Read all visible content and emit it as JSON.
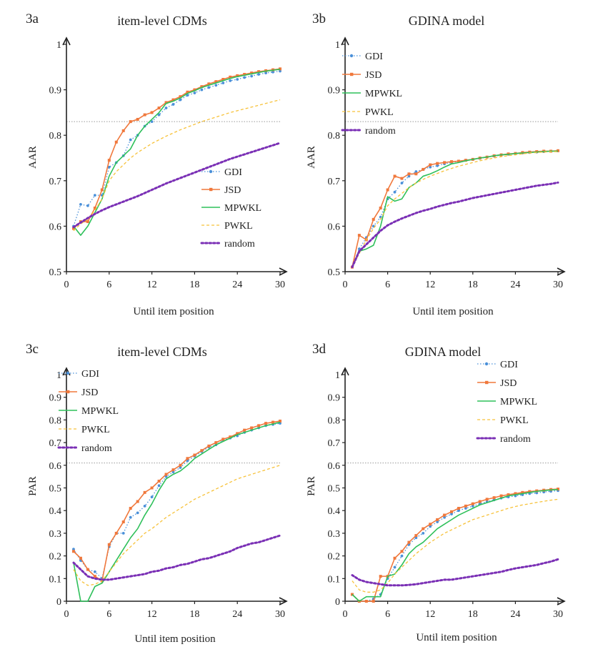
{
  "figure": {
    "series_colors": {
      "GDI": "#4a90d9",
      "JSD": "#f0783c",
      "MPWKL": "#2ec05a",
      "PWKL": "#f7c23a",
      "random": "#7a2fb5"
    },
    "reference_line_color": "#999999"
  },
  "panels": [
    {
      "label": "3a",
      "title": "item-level CDMs"
    },
    {
      "label": "3b",
      "title": "GDINA model"
    },
    {
      "label": "3c",
      "title": "item-level CDMs"
    },
    {
      "label": "3d",
      "title": "GDINA model"
    }
  ],
  "chart_data": [
    {
      "type": "line",
      "id": "3a",
      "title": "item-level CDMs",
      "xlabel": "Until item position",
      "ylabel": "AAR",
      "xlim": [
        0,
        30
      ],
      "ylim": [
        0.5,
        1
      ],
      "xticks": [
        0,
        6,
        12,
        18,
        24,
        30
      ],
      "xtick_labels": [
        "0",
        "6",
        "12",
        "18",
        "24",
        "30"
      ],
      "yticks": [
        0.5,
        0.6,
        0.7,
        0.8,
        0.9,
        1
      ],
      "ytick_labels": [
        "0.5",
        "0.6",
        "0.7",
        "0.8",
        "0.9",
        "1"
      ],
      "reference_line": 0.83,
      "legend": "right-middle",
      "x": [
        1,
        2,
        3,
        4,
        5,
        6,
        7,
        8,
        9,
        10,
        11,
        12,
        13,
        14,
        15,
        16,
        17,
        18,
        19,
        20,
        21,
        22,
        23,
        24,
        25,
        26,
        27,
        28,
        29,
        30
      ],
      "series": [
        {
          "name": "GDI",
          "values": [
            0.6,
            0.648,
            0.645,
            0.668,
            0.668,
            0.73,
            0.74,
            0.755,
            0.79,
            0.8,
            0.82,
            0.83,
            0.845,
            0.86,
            0.868,
            0.878,
            0.888,
            0.893,
            0.9,
            0.905,
            0.91,
            0.915,
            0.92,
            0.923,
            0.927,
            0.93,
            0.934,
            0.937,
            0.939,
            0.941
          ]
        },
        {
          "name": "JSD",
          "values": [
            0.595,
            0.61,
            0.61,
            0.64,
            0.68,
            0.745,
            0.785,
            0.81,
            0.83,
            0.835,
            0.845,
            0.85,
            0.86,
            0.872,
            0.878,
            0.885,
            0.895,
            0.9,
            0.907,
            0.913,
            0.918,
            0.923,
            0.928,
            0.931,
            0.934,
            0.937,
            0.94,
            0.942,
            0.944,
            0.946
          ]
        },
        {
          "name": "MPWKL",
          "values": [
            0.6,
            0.58,
            0.6,
            0.63,
            0.66,
            0.71,
            0.74,
            0.755,
            0.77,
            0.8,
            0.82,
            0.835,
            0.85,
            0.87,
            0.875,
            0.882,
            0.892,
            0.898,
            0.905,
            0.91,
            0.915,
            0.92,
            0.925,
            0.929,
            0.932,
            0.935,
            0.938,
            0.941,
            0.943,
            0.945
          ]
        },
        {
          "name": "PWKL",
          "values": [
            0.59,
            0.605,
            0.615,
            0.635,
            0.66,
            0.7,
            0.72,
            0.735,
            0.75,
            0.762,
            0.772,
            0.782,
            0.79,
            0.798,
            0.805,
            0.812,
            0.818,
            0.824,
            0.83,
            0.835,
            0.84,
            0.845,
            0.85,
            0.854,
            0.858,
            0.862,
            0.866,
            0.87,
            0.874,
            0.878
          ]
        },
        {
          "name": "random",
          "values": [
            0.598,
            0.608,
            0.618,
            0.627,
            0.635,
            0.642,
            0.648,
            0.654,
            0.66,
            0.666,
            0.673,
            0.68,
            0.687,
            0.694,
            0.7,
            0.706,
            0.712,
            0.718,
            0.724,
            0.73,
            0.736,
            0.742,
            0.748,
            0.753,
            0.758,
            0.763,
            0.768,
            0.773,
            0.778,
            0.783
          ]
        }
      ]
    },
    {
      "type": "line",
      "id": "3b",
      "title": "GDINA model",
      "xlabel": "Until item position",
      "ylabel": "AAR",
      "xlim": [
        0,
        30
      ],
      "ylim": [
        0.5,
        1
      ],
      "xticks": [
        0,
        6,
        12,
        18,
        24,
        30
      ],
      "xtick_labels": [
        "0",
        "6",
        "12",
        "18",
        "24",
        "30"
      ],
      "yticks": [
        0.5,
        0.6,
        0.7,
        0.8,
        0.9,
        1
      ],
      "ytick_labels": [
        "0.5",
        "0.6",
        "0.7",
        "0.8",
        "0.9",
        "1"
      ],
      "reference_line": 0.83,
      "legend": "top-left",
      "x": [
        1,
        2,
        3,
        4,
        5,
        6,
        7,
        8,
        9,
        10,
        11,
        12,
        13,
        14,
        15,
        16,
        17,
        18,
        19,
        20,
        21,
        22,
        23,
        24,
        25,
        26,
        27,
        28,
        29,
        30
      ],
      "series": [
        {
          "name": "GDI",
          "values": [
            0.51,
            0.55,
            0.575,
            0.6,
            0.62,
            0.66,
            0.675,
            0.695,
            0.71,
            0.72,
            0.725,
            0.73,
            0.733,
            0.737,
            0.74,
            0.743,
            0.745,
            0.747,
            0.749,
            0.752,
            0.754,
            0.756,
            0.758,
            0.759,
            0.761,
            0.762,
            0.763,
            0.764,
            0.765,
            0.766
          ]
        },
        {
          "name": "JSD",
          "values": [
            0.51,
            0.58,
            0.57,
            0.615,
            0.64,
            0.68,
            0.71,
            0.705,
            0.715,
            0.715,
            0.725,
            0.735,
            0.738,
            0.74,
            0.742,
            0.743,
            0.745,
            0.747,
            0.75,
            0.752,
            0.755,
            0.757,
            0.759,
            0.76,
            0.762,
            0.763,
            0.764,
            0.765,
            0.765,
            0.766
          ]
        },
        {
          "name": "MPWKL",
          "values": [
            0.51,
            0.545,
            0.55,
            0.558,
            0.6,
            0.665,
            0.655,
            0.66,
            0.685,
            0.695,
            0.71,
            0.715,
            0.722,
            0.73,
            0.737,
            0.74,
            0.744,
            0.747,
            0.75,
            0.752,
            0.755,
            0.757,
            0.758,
            0.76,
            0.761,
            0.762,
            0.763,
            0.764,
            0.765,
            0.765
          ]
        },
        {
          "name": "PWKL",
          "values": [
            0.51,
            0.54,
            0.57,
            0.595,
            0.615,
            0.645,
            0.66,
            0.672,
            0.685,
            0.695,
            0.703,
            0.71,
            0.716,
            0.722,
            0.727,
            0.732,
            0.736,
            0.74,
            0.744,
            0.747,
            0.75,
            0.753,
            0.755,
            0.757,
            0.759,
            0.761,
            0.762,
            0.763,
            0.764,
            0.764
          ]
        },
        {
          "name": "random",
          "values": [
            0.51,
            0.545,
            0.56,
            0.575,
            0.59,
            0.602,
            0.61,
            0.617,
            0.623,
            0.629,
            0.634,
            0.638,
            0.643,
            0.647,
            0.651,
            0.654,
            0.658,
            0.662,
            0.665,
            0.668,
            0.671,
            0.674,
            0.677,
            0.68,
            0.683,
            0.686,
            0.689,
            0.691,
            0.693,
            0.696
          ]
        }
      ]
    },
    {
      "type": "line",
      "id": "3c",
      "title": "item-level CDMs",
      "xlabel": "Until item position",
      "ylabel": "PAR",
      "xlim": [
        0,
        30
      ],
      "ylim": [
        0,
        1
      ],
      "xticks": [
        0,
        6,
        12,
        18,
        24,
        30
      ],
      "xtick_labels": [
        "0",
        "6",
        "12",
        "18",
        "24",
        "30"
      ],
      "yticks": [
        0,
        0.1,
        0.2,
        0.3,
        0.4,
        0.5,
        0.6,
        0.7,
        0.8,
        0.9,
        1
      ],
      "ytick_labels": [
        "0",
        "0.1",
        "0.2",
        "0.3",
        "0.4",
        "0.5",
        "0.6",
        "0.7",
        "0.8",
        "0.9",
        "1"
      ],
      "reference_line": 0.61,
      "legend": "top-left",
      "x": [
        1,
        2,
        3,
        4,
        5,
        6,
        7,
        8,
        9,
        10,
        11,
        12,
        13,
        14,
        15,
        16,
        17,
        18,
        19,
        20,
        21,
        22,
        23,
        24,
        25,
        26,
        27,
        28,
        29,
        30
      ],
      "series": [
        {
          "name": "GDI",
          "values": [
            0.23,
            0.18,
            0.14,
            0.13,
            0.1,
            0.24,
            0.3,
            0.3,
            0.37,
            0.39,
            0.42,
            0.46,
            0.51,
            0.55,
            0.57,
            0.59,
            0.62,
            0.64,
            0.66,
            0.68,
            0.69,
            0.71,
            0.72,
            0.73,
            0.745,
            0.755,
            0.765,
            0.775,
            0.78,
            0.785
          ]
        },
        {
          "name": "JSD",
          "values": [
            0.22,
            0.19,
            0.14,
            0.11,
            0.09,
            0.25,
            0.3,
            0.35,
            0.41,
            0.44,
            0.48,
            0.5,
            0.53,
            0.56,
            0.58,
            0.6,
            0.63,
            0.645,
            0.665,
            0.685,
            0.7,
            0.715,
            0.725,
            0.74,
            0.755,
            0.765,
            0.775,
            0.785,
            0.79,
            0.795
          ]
        },
        {
          "name": "MPWKL",
          "values": [
            0.17,
            0.0,
            0.0,
            0.065,
            0.08,
            0.13,
            0.18,
            0.23,
            0.28,
            0.32,
            0.38,
            0.43,
            0.49,
            0.54,
            0.56,
            0.575,
            0.6,
            0.63,
            0.65,
            0.67,
            0.69,
            0.705,
            0.72,
            0.735,
            0.745,
            0.755,
            0.765,
            0.775,
            0.782,
            0.79
          ]
        },
        {
          "name": "PWKL",
          "values": [
            0.14,
            0.09,
            0.07,
            0.075,
            0.09,
            0.13,
            0.17,
            0.21,
            0.24,
            0.27,
            0.3,
            0.32,
            0.345,
            0.37,
            0.39,
            0.41,
            0.43,
            0.45,
            0.465,
            0.48,
            0.495,
            0.51,
            0.525,
            0.54,
            0.55,
            0.56,
            0.57,
            0.58,
            0.59,
            0.6
          ]
        },
        {
          "name": "random",
          "values": [
            0.17,
            0.14,
            0.11,
            0.1,
            0.095,
            0.095,
            0.1,
            0.105,
            0.11,
            0.115,
            0.12,
            0.13,
            0.135,
            0.145,
            0.15,
            0.16,
            0.165,
            0.175,
            0.185,
            0.19,
            0.2,
            0.21,
            0.22,
            0.235,
            0.245,
            0.255,
            0.26,
            0.27,
            0.28,
            0.29
          ]
        }
      ]
    },
    {
      "type": "line",
      "id": "3d",
      "title": "GDINA model",
      "xlabel": "Until item position",
      "ylabel": "PAR",
      "xlim": [
        0,
        30
      ],
      "ylim": [
        0,
        1
      ],
      "xticks": [
        0,
        6,
        12,
        18,
        24,
        30
      ],
      "xtick_labels": [
        "0",
        "6",
        "12",
        "18",
        "24",
        "30"
      ],
      "yticks": [
        0,
        0.1,
        0.2,
        0.3,
        0.4,
        0.5,
        0.6,
        0.7,
        0.8,
        0.9,
        1
      ],
      "ytick_labels": [
        "0",
        "0.1",
        "0.2",
        "0.3",
        "0.4",
        "0.5",
        "0.6",
        "0.7",
        "0.8",
        "0.9",
        "1"
      ],
      "reference_line": 0.61,
      "legend": "top-right",
      "x": [
        1,
        2,
        3,
        4,
        5,
        6,
        7,
        8,
        9,
        10,
        11,
        12,
        13,
        14,
        15,
        16,
        17,
        18,
        19,
        20,
        21,
        22,
        23,
        24,
        25,
        26,
        27,
        28,
        29,
        30
      ],
      "series": [
        {
          "name": "GDI",
          "values": [
            0.03,
            0.0,
            0.0,
            0.01,
            0.03,
            0.1,
            0.15,
            0.2,
            0.25,
            0.28,
            0.3,
            0.33,
            0.35,
            0.37,
            0.385,
            0.4,
            0.41,
            0.42,
            0.43,
            0.44,
            0.447,
            0.455,
            0.46,
            0.465,
            0.47,
            0.475,
            0.478,
            0.482,
            0.485,
            0.488
          ]
        },
        {
          "name": "JSD",
          "values": [
            0.03,
            0.0,
            0.0,
            0.0,
            0.11,
            0.11,
            0.19,
            0.22,
            0.26,
            0.29,
            0.32,
            0.34,
            0.36,
            0.38,
            0.395,
            0.41,
            0.42,
            0.43,
            0.44,
            0.45,
            0.457,
            0.465,
            0.47,
            0.475,
            0.48,
            0.484,
            0.487,
            0.49,
            0.493,
            0.495
          ]
        },
        {
          "name": "MPWKL",
          "values": [
            0.03,
            0.0,
            0.02,
            0.02,
            0.02,
            0.11,
            0.12,
            0.16,
            0.21,
            0.24,
            0.26,
            0.29,
            0.32,
            0.34,
            0.36,
            0.38,
            0.395,
            0.41,
            0.425,
            0.435,
            0.445,
            0.455,
            0.465,
            0.47,
            0.475,
            0.48,
            0.485,
            0.488,
            0.491,
            0.493
          ]
        },
        {
          "name": "PWKL",
          "values": [
            0.09,
            0.05,
            0.04,
            0.04,
            0.05,
            0.08,
            0.12,
            0.15,
            0.18,
            0.21,
            0.235,
            0.26,
            0.28,
            0.3,
            0.315,
            0.33,
            0.345,
            0.36,
            0.37,
            0.38,
            0.39,
            0.4,
            0.41,
            0.418,
            0.425,
            0.43,
            0.436,
            0.441,
            0.446,
            0.45
          ]
        },
        {
          "name": "random",
          "values": [
            0.115,
            0.095,
            0.085,
            0.08,
            0.075,
            0.07,
            0.07,
            0.07,
            0.072,
            0.075,
            0.08,
            0.085,
            0.09,
            0.095,
            0.095,
            0.1,
            0.105,
            0.11,
            0.115,
            0.12,
            0.125,
            0.13,
            0.138,
            0.145,
            0.15,
            0.155,
            0.16,
            0.168,
            0.175,
            0.185
          ]
        }
      ]
    }
  ]
}
